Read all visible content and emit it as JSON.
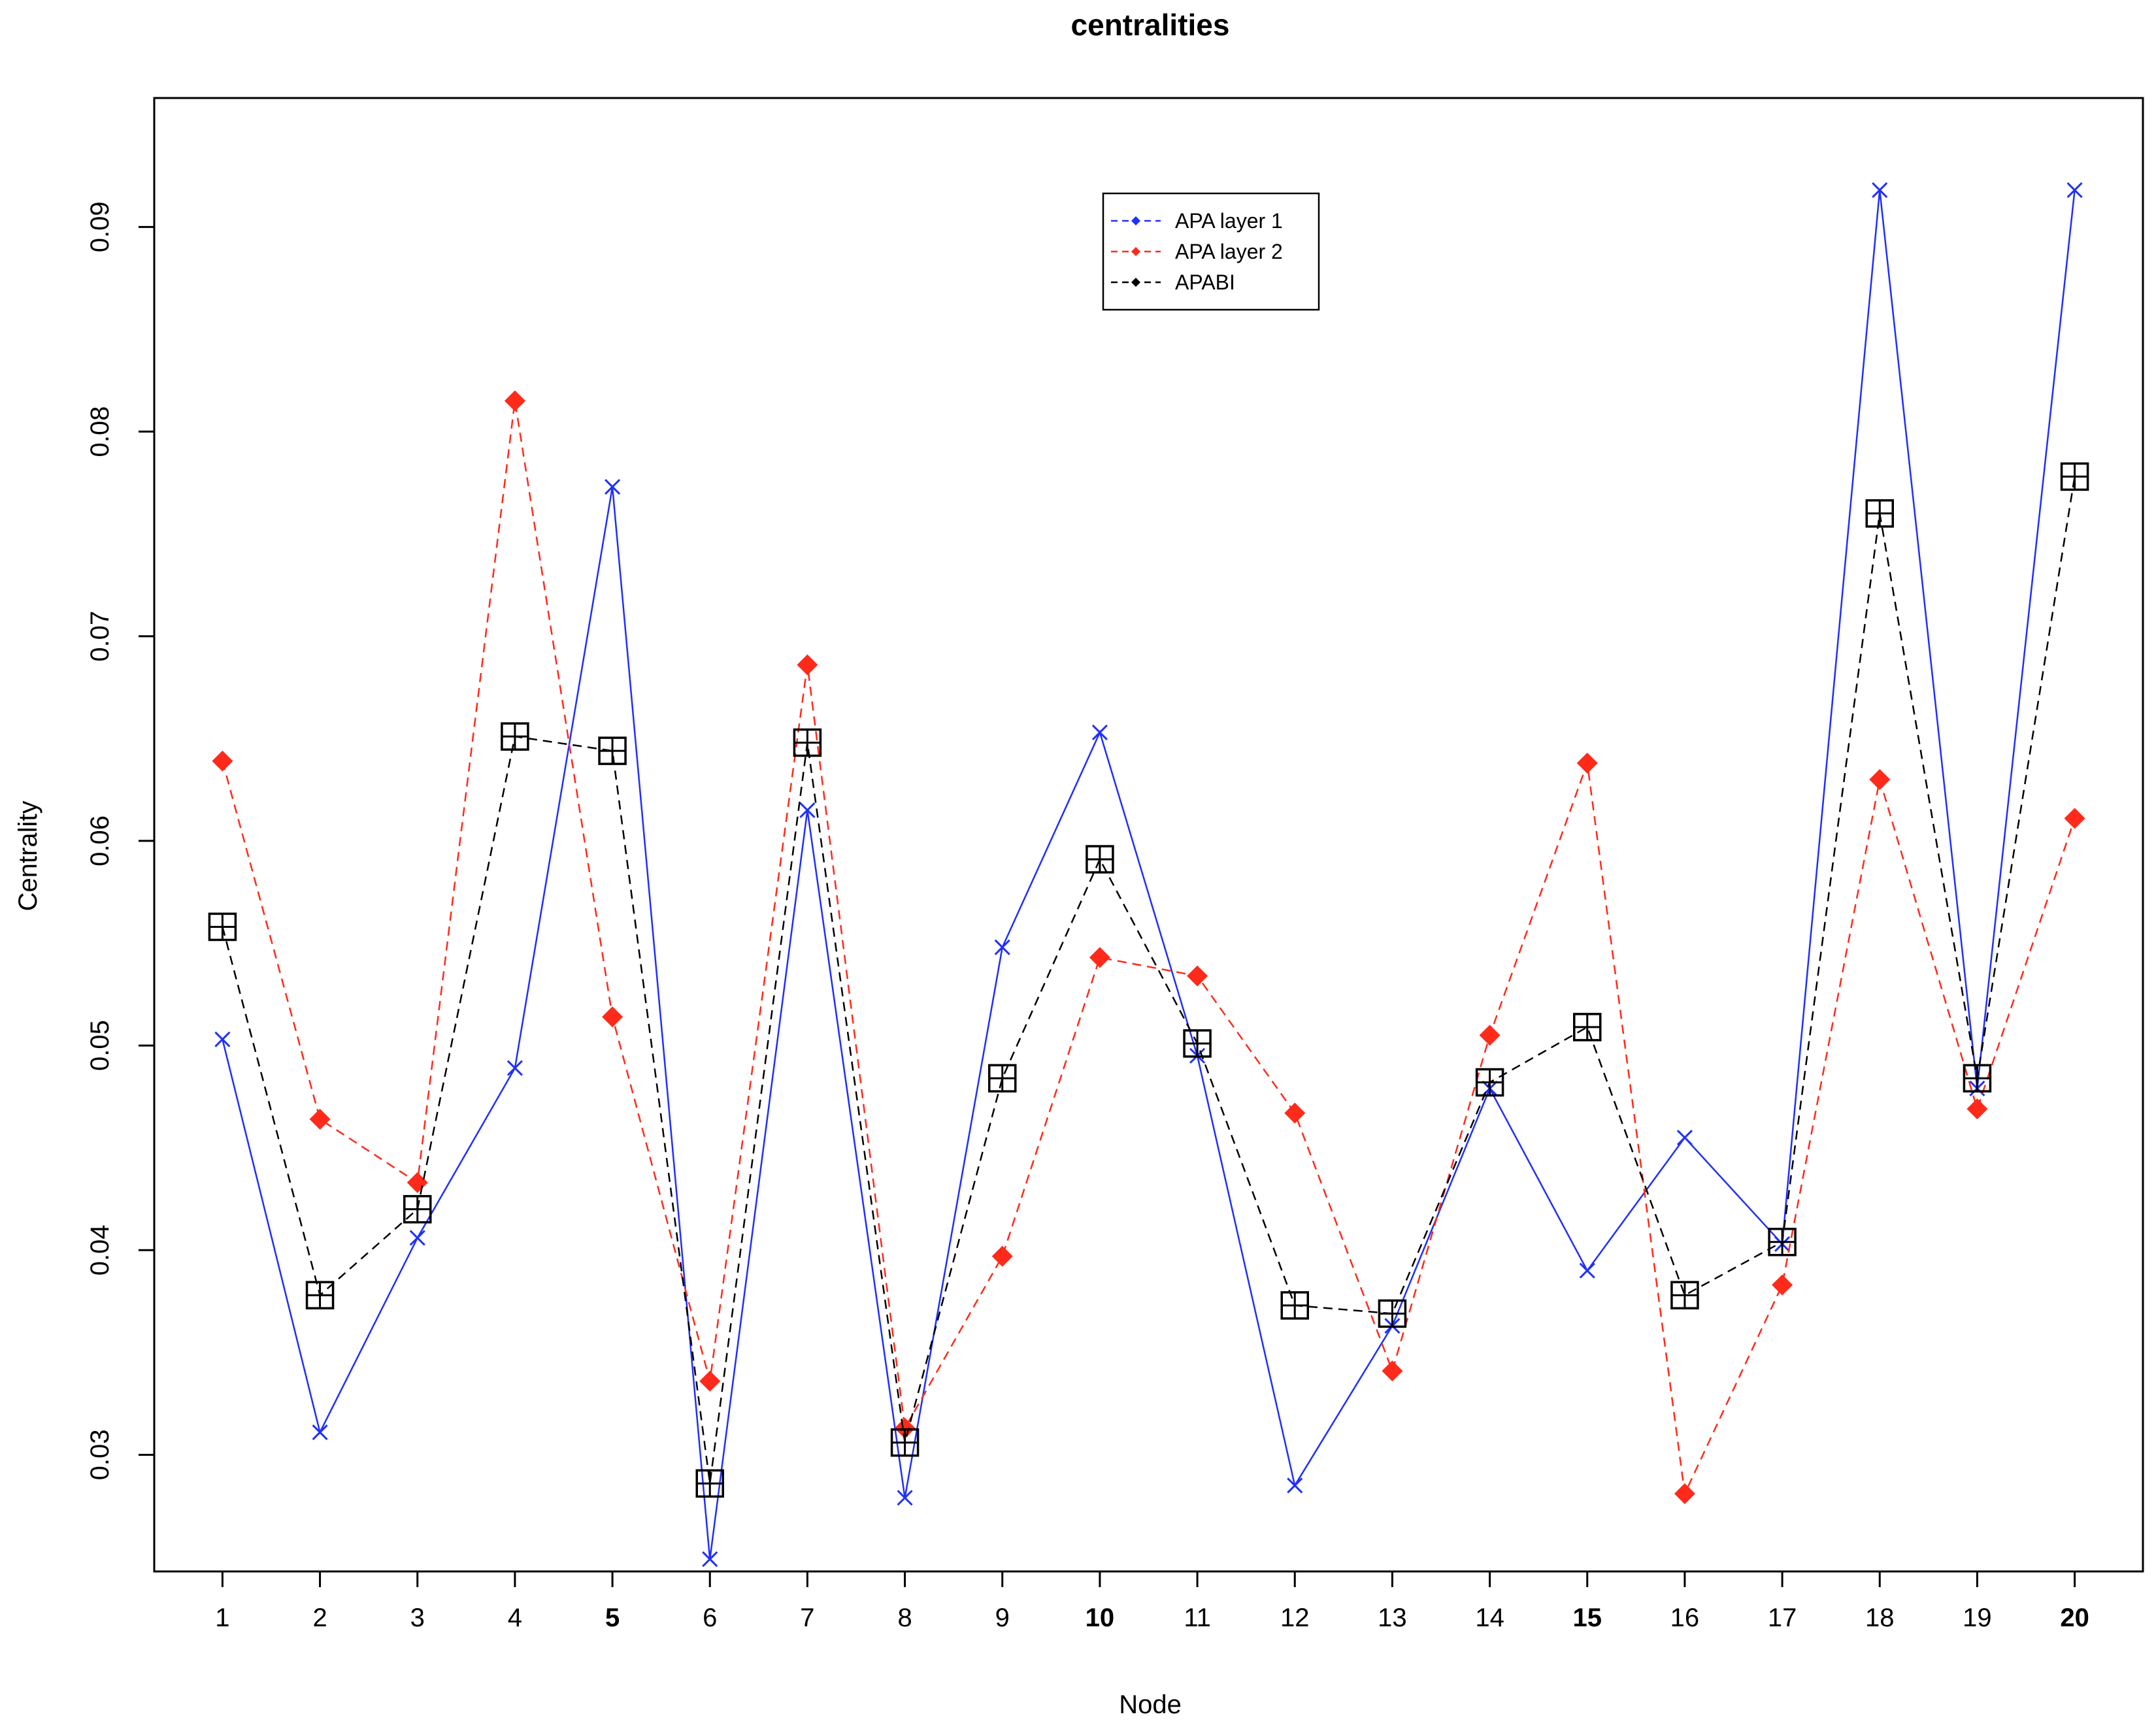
{
  "chart_data": {
    "type": "line",
    "title": "centralities",
    "xlabel": "Node",
    "ylabel": "Centrality",
    "x": [
      1,
      2,
      3,
      4,
      5,
      6,
      7,
      8,
      9,
      10,
      11,
      12,
      13,
      14,
      15,
      16,
      17,
      18,
      19,
      20
    ],
    "x_tick_labels": [
      "1",
      "2",
      "3",
      "4",
      "5",
      "6",
      "7",
      "8",
      "9",
      "10",
      "11",
      "12",
      "13",
      "14",
      "15",
      "16",
      "17",
      "18",
      "19",
      "20"
    ],
    "bold_ticks": [
      "5",
      "10",
      "15",
      "20"
    ],
    "y_ticks": [
      0.03,
      0.04,
      0.05,
      0.06,
      0.07,
      0.08,
      0.09
    ],
    "y_tick_labels": [
      "0.03",
      "0.04",
      "0.05",
      "0.06",
      "0.07",
      "0.08",
      "0.09"
    ],
    "xlim": [
      0.3,
      20.7
    ],
    "ylim": [
      0.0243,
      0.0963
    ],
    "legend_position": "top-center",
    "series": [
      {
        "name": "APA layer 1",
        "color": "#1f2fff",
        "line_style": "solid",
        "marker": "x",
        "values": [
          0.0503,
          0.0311,
          0.0406,
          0.0489,
          0.0773,
          0.0249,
          0.0615,
          0.0279,
          0.0548,
          0.0653,
          0.0495,
          0.0285,
          0.0363,
          0.0479,
          0.039,
          0.0455,
          0.0403,
          0.0918,
          0.0479,
          0.0918
        ]
      },
      {
        "name": "APA layer 2",
        "color": "#ff2a1a",
        "line_style": "dashed",
        "marker": "diamond",
        "values": [
          0.0639,
          0.0464,
          0.0433,
          0.0815,
          0.0514,
          0.0336,
          0.0686,
          0.0313,
          0.0397,
          0.0543,
          0.0534,
          0.0467,
          0.0341,
          0.0505,
          0.0638,
          0.0281,
          0.0383,
          0.063,
          0.0469,
          0.0611
        ]
      },
      {
        "name": "APABI",
        "color": "#000000",
        "line_style": "dashed",
        "marker": "boxed-plus",
        "values": [
          0.0558,
          0.0378,
          0.042,
          0.0651,
          0.0644,
          0.0286,
          0.0648,
          0.0306,
          0.0484,
          0.0591,
          0.0501,
          0.0373,
          0.0369,
          0.0482,
          0.0509,
          0.0378,
          0.0404,
          0.076,
          0.0484,
          0.0778
        ]
      }
    ]
  }
}
